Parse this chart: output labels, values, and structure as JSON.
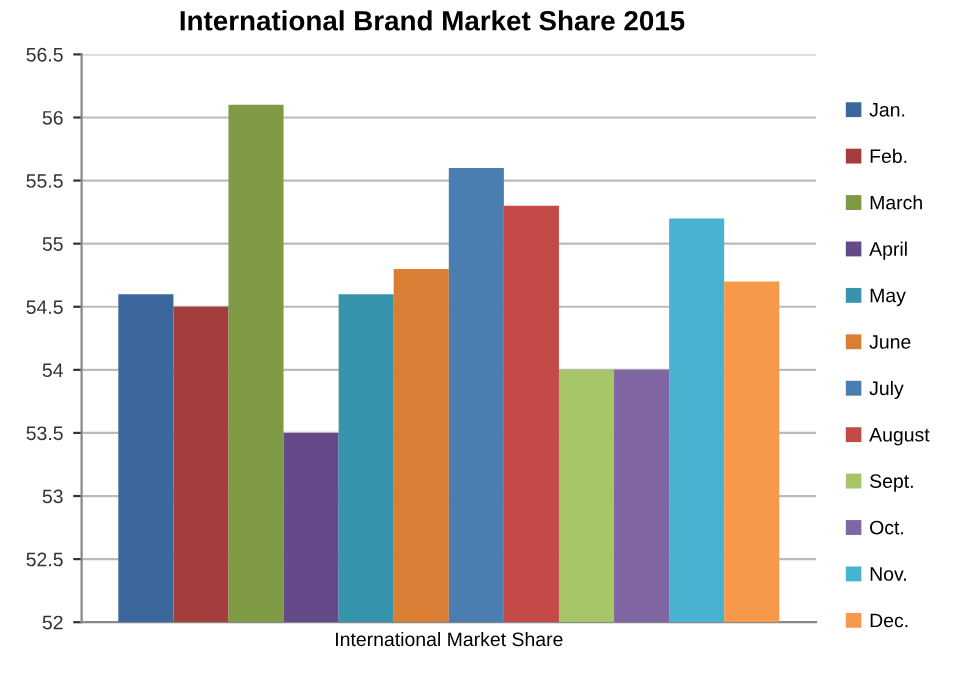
{
  "chart_data": {
    "type": "bar",
    "title": "International Brand Market Share 2015",
    "categories": [
      "International Market Share"
    ],
    "series": [
      {
        "name": "Jan.",
        "color": "#3c679c",
        "values": [
          54.6
        ]
      },
      {
        "name": "Feb.",
        "color": "#a33e3c",
        "values": [
          54.5
        ]
      },
      {
        "name": "March",
        "color": "#7e9a45",
        "values": [
          56.1
        ]
      },
      {
        "name": "April",
        "color": "#644a88",
        "values": [
          53.5
        ]
      },
      {
        "name": "May",
        "color": "#3695ad",
        "values": [
          54.6
        ]
      },
      {
        "name": "June",
        "color": "#d97e34",
        "values": [
          54.8
        ]
      },
      {
        "name": "July",
        "color": "#4a7eb0",
        "values": [
          55.6
        ]
      },
      {
        "name": "August",
        "color": "#c44a48",
        "values": [
          55.3
        ]
      },
      {
        "name": "Sept.",
        "color": "#a5c567",
        "values": [
          54.0
        ]
      },
      {
        "name": "Oct.",
        "color": "#8066a3",
        "values": [
          54.0
        ]
      },
      {
        "name": "Nov.",
        "color": "#48b3d1",
        "values": [
          55.2
        ]
      },
      {
        "name": "Dec.",
        "color": "#f7994a",
        "values": [
          54.7
        ]
      }
    ],
    "ylim": [
      52,
      56.5
    ],
    "yticks": [
      52,
      52.5,
      53,
      53.5,
      54,
      54.5,
      55,
      55.5,
      56,
      56.5
    ],
    "grid": "y",
    "legend": "right"
  }
}
